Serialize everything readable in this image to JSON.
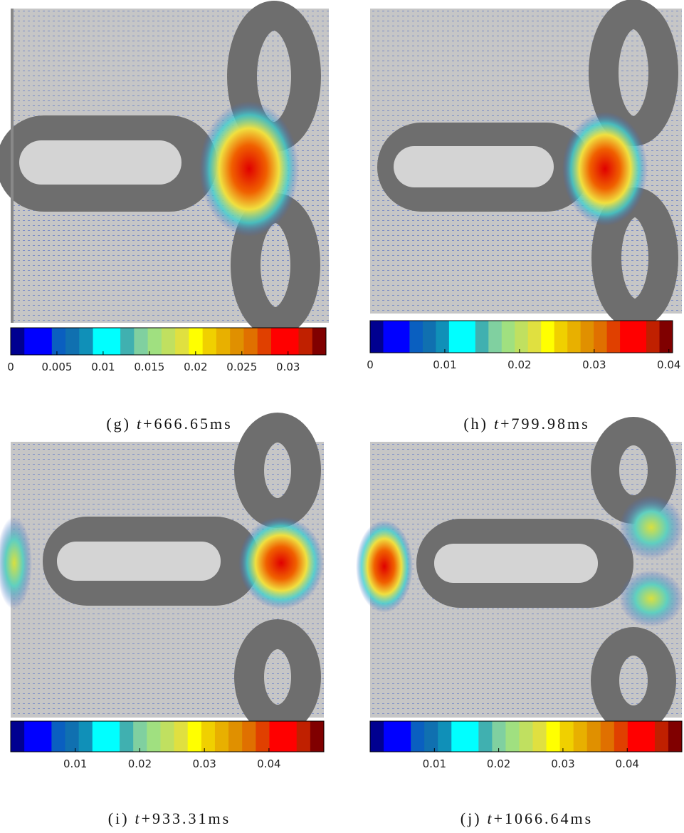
{
  "chart_data": [
    {
      "type": "colorbar",
      "label": "(g)",
      "var": "t",
      "time": "+666.65ms",
      "xlim": [
        0,
        0.0341
      ],
      "xticks": [
        0,
        0.005,
        0.01,
        0.015,
        0.02,
        0.025,
        0.03
      ],
      "colors": [
        "#000090",
        "#0000ff",
        "#0000ff",
        "#0a5fc0",
        "#1070b0",
        "#1090b8",
        "#00ffff",
        "#00ffff",
        "#40b0b0",
        "#80d0a0",
        "#a0e080",
        "#c0e060",
        "#e0e040",
        "#ffff00",
        "#f0d000",
        "#e8b000",
        "#e09000",
        "#e07000",
        "#e04000",
        "#ff0000",
        "#ff0000",
        "#c02000",
        "#800000"
      ]
    },
    {
      "type": "colorbar",
      "label": "(h)",
      "var": "t",
      "time": "+799.98ms",
      "xlim": [
        0,
        0.0405
      ],
      "xticks": [
        0,
        0.01,
        0.02,
        0.03,
        0.04
      ],
      "colors": [
        "#000090",
        "#0000ff",
        "#0000ff",
        "#0a5fc0",
        "#1070b0",
        "#1090b8",
        "#00ffff",
        "#00ffff",
        "#40b0b0",
        "#80d0a0",
        "#a0e080",
        "#c0e060",
        "#e0e040",
        "#ffff00",
        "#f0d000",
        "#e8b000",
        "#e09000",
        "#e07000",
        "#e04000",
        "#ff0000",
        "#ff0000",
        "#c02000",
        "#800000"
      ]
    },
    {
      "type": "colorbar",
      "label": "(i)",
      "var": "t",
      "time": "+933.31ms",
      "xlim": [
        0,
        0.0485
      ],
      "xticks": [
        0.01,
        0.02,
        0.03,
        0.04
      ],
      "colors": [
        "#000090",
        "#0000ff",
        "#0000ff",
        "#0a5fc0",
        "#1070b0",
        "#1090b8",
        "#00ffff",
        "#00ffff",
        "#40b0b0",
        "#80d0a0",
        "#a0e080",
        "#c0e060",
        "#e0e040",
        "#ffff00",
        "#f0d000",
        "#e8b000",
        "#e09000",
        "#e07000",
        "#e04000",
        "#ff0000",
        "#ff0000",
        "#c02000",
        "#800000"
      ]
    },
    {
      "type": "colorbar",
      "label": "(j)",
      "var": "t",
      "time": "+1066.64ms",
      "xlim": [
        0,
        0.0485
      ],
      "xticks": [
        0.01,
        0.02,
        0.03,
        0.04
      ],
      "colors": [
        "#000090",
        "#0000ff",
        "#0000ff",
        "#0a5fc0",
        "#1070b0",
        "#1090b8",
        "#00ffff",
        "#00ffff",
        "#40b0b0",
        "#80d0a0",
        "#a0e080",
        "#c0e060",
        "#e0e040",
        "#ffff00",
        "#f0d000",
        "#e8b000",
        "#e09000",
        "#e07000",
        "#e04000",
        "#ff0000",
        "#ff0000",
        "#c02000",
        "#800000"
      ]
    }
  ]
}
